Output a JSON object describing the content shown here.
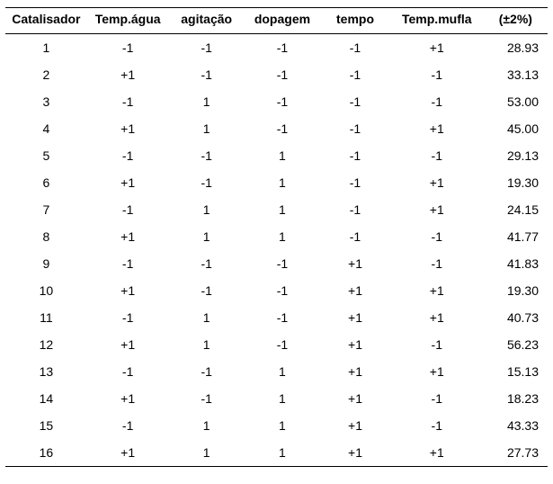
{
  "table": {
    "columns": [
      "Catalisador",
      "Temp.água",
      "agitação",
      "dopagem",
      "tempo",
      "Temp.mufla",
      "(±2%)"
    ],
    "column_widths_pct": [
      14,
      14,
      13,
      13,
      12,
      16,
      11
    ],
    "font_size_pt": 14,
    "header_font_weight": "bold",
    "background_color": "#ffffff",
    "text_color": "#000000",
    "border_color": "#000000",
    "rows": [
      [
        "1",
        "-1",
        "-1",
        "-1",
        "-1",
        "+1",
        "28.93"
      ],
      [
        "2",
        "+1",
        "-1",
        "-1",
        "-1",
        "-1",
        "33.13"
      ],
      [
        "3",
        "-1",
        "1",
        "-1",
        "-1",
        "-1",
        "53.00"
      ],
      [
        "4",
        "+1",
        "1",
        "-1",
        "-1",
        "+1",
        "45.00"
      ],
      [
        "5",
        "-1",
        "-1",
        "1",
        "-1",
        "-1",
        "29.13"
      ],
      [
        "6",
        "+1",
        "-1",
        "1",
        "-1",
        "+1",
        "19.30"
      ],
      [
        "7",
        "-1",
        "1",
        "1",
        "-1",
        "+1",
        "24.15"
      ],
      [
        "8",
        "+1",
        "1",
        "1",
        "-1",
        "-1",
        "41.77"
      ],
      [
        "9",
        "-1",
        "-1",
        "-1",
        "+1",
        "-1",
        "41.83"
      ],
      [
        "10",
        "+1",
        "-1",
        "-1",
        "+1",
        "+1",
        "19.30"
      ],
      [
        "11",
        "-1",
        "1",
        "-1",
        "+1",
        "+1",
        "40.73"
      ],
      [
        "12",
        "+1",
        "1",
        "-1",
        "+1",
        "-1",
        "56.23"
      ],
      [
        "13",
        "-1",
        "-1",
        "1",
        "+1",
        "+1",
        "15.13"
      ],
      [
        "14",
        "+1",
        "-1",
        "1",
        "+1",
        "-1",
        "18.23"
      ],
      [
        "15",
        "-1",
        "1",
        "1",
        "+1",
        "-1",
        "43.33"
      ],
      [
        "16",
        "+1",
        "1",
        "1",
        "+1",
        "+1",
        "27.73"
      ]
    ]
  }
}
